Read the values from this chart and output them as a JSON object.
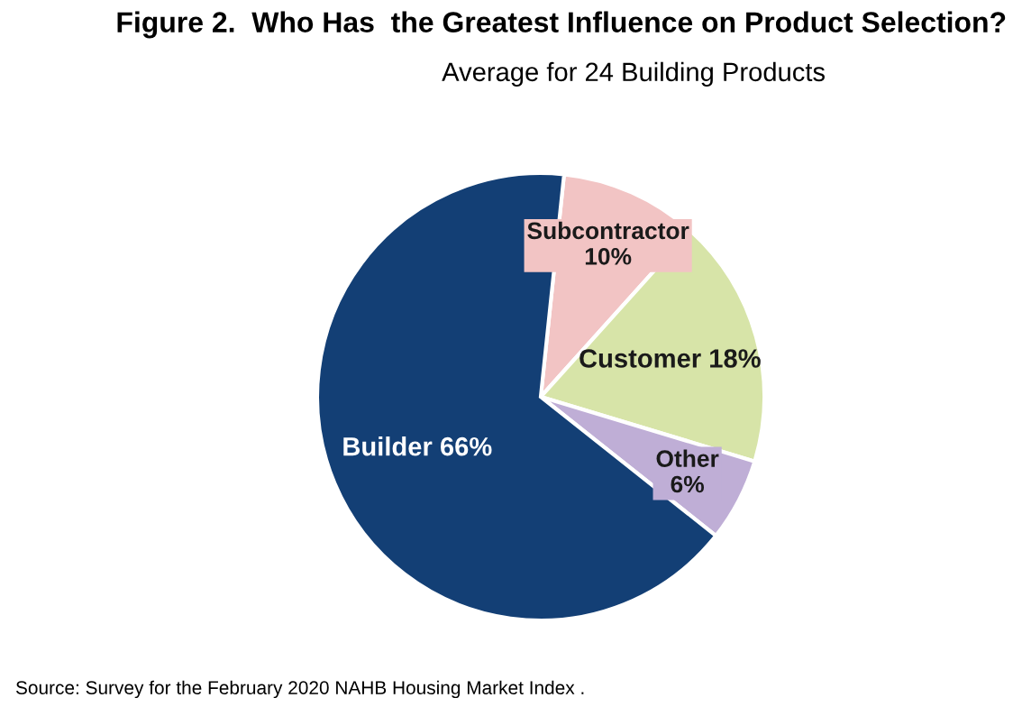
{
  "chart_data": {
    "type": "pie",
    "title": "Figure 2.  Who Has  the Greatest Influence on Product Selection?",
    "subtitle": "Average for 24 Building Products",
    "categories": [
      "Subcontractor",
      "Customer",
      "Other",
      "Builder"
    ],
    "values": [
      10,
      18,
      6,
      66
    ],
    "colors": [
      "#f2c4c4",
      "#d7e4a8",
      "#bfaed6",
      "#133f75"
    ],
    "value_labels": [
      "10%",
      "18%",
      "6%",
      "66%"
    ],
    "annotations": [
      "Source: Survey for the February 2020 NAHB Housing Market Index ."
    ],
    "legend": false
  }
}
